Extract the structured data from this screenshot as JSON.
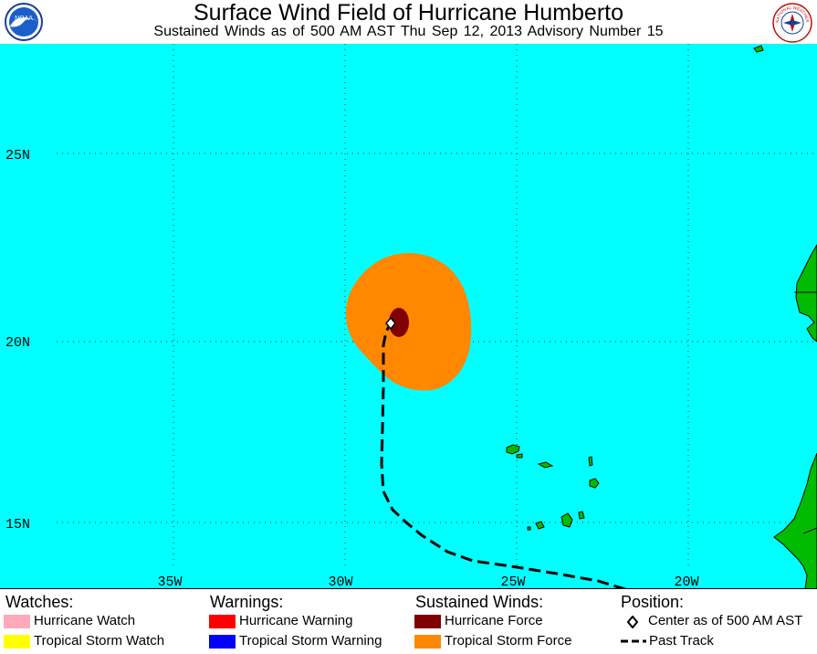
{
  "title": "Surface Wind Field of Hurricane Humberto",
  "subtitle": "Sustained Winds as of 500 AM AST Thu Sep 12, 2013     Advisory Number 15",
  "logos": {
    "noaa": "NOAA",
    "nws": "NATIONAL WEATHER SERVICE"
  },
  "map": {
    "lat_labels": [
      "25N",
      "20N",
      "15N"
    ],
    "lon_labels": [
      "35W",
      "30W",
      "25W",
      "20W"
    ],
    "colors": {
      "ocean": "#00ffff",
      "land": "#00bb00",
      "tropical_storm_force": "#ff8800",
      "hurricane_force": "#800000"
    },
    "storm_center": {
      "lat": 20.5,
      "lon": 28.7
    }
  },
  "legend": {
    "watches": {
      "heading": "Watches:",
      "items": [
        {
          "label": "Hurricane Watch",
          "color": "#ffaabb"
        },
        {
          "label": "Tropical Storm Watch",
          "color": "#ffff00"
        }
      ]
    },
    "warnings": {
      "heading": "Warnings:",
      "items": [
        {
          "label": "Hurricane Warning",
          "color": "#ff0000"
        },
        {
          "label": "Tropical Storm Warning",
          "color": "#0000ff"
        }
      ]
    },
    "winds": {
      "heading": "Sustained Winds:",
      "items": [
        {
          "label": "Hurricane Force",
          "color": "#800000"
        },
        {
          "label": "Tropical Storm Force",
          "color": "#ff8800"
        }
      ]
    },
    "position": {
      "heading": "Position:",
      "items": [
        {
          "label": "Center as of 500 AM AST",
          "icon": "diamond-icon"
        },
        {
          "label": "Past Track",
          "icon": "dashed-line-icon"
        }
      ]
    }
  }
}
